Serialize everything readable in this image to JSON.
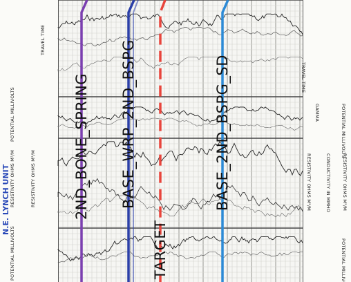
{
  "unit_label": "N.E. LYNCH UNIT",
  "left_headers": {
    "travel_time": "TRAVEL TIME",
    "potential_millivolts": "POTENTIAL MILLIVOLTS",
    "resistivity_1": "RESISTIVITY OHMS M²/M",
    "resistivity_2": "RESISTIVITY OHMS M²/M",
    "potential_millivolts_2": "POTENTIAL MILLIVOLTS"
  },
  "right_headers": {
    "travel_time": "TRAVEL TIME",
    "gamma": "GAMMA",
    "potential_millivolts": "POTENTIAL MILLIVOLTS",
    "resistivity": "RESISTIVITY OHMS M²/M",
    "conductivity": "CONDUCTIVITY IN MMHO",
    "resistivity_2": "RESISTIVITY OHMS M²/M",
    "potential_millivolts_2": "POTENTIAL MILLIVOLTS"
  },
  "picks": [
    {
      "name": "2ND_BONE_SPRING",
      "color": "#7b3fb0"
    },
    {
      "name": "BASE_WRP_2ND_BSPG",
      "color": "#2b3fa8"
    },
    {
      "name": "TARGET",
      "color": "#e8453c"
    },
    {
      "name": "BASE_2ND_BSPG_SD",
      "color": "#2c8ad6"
    }
  ]
}
